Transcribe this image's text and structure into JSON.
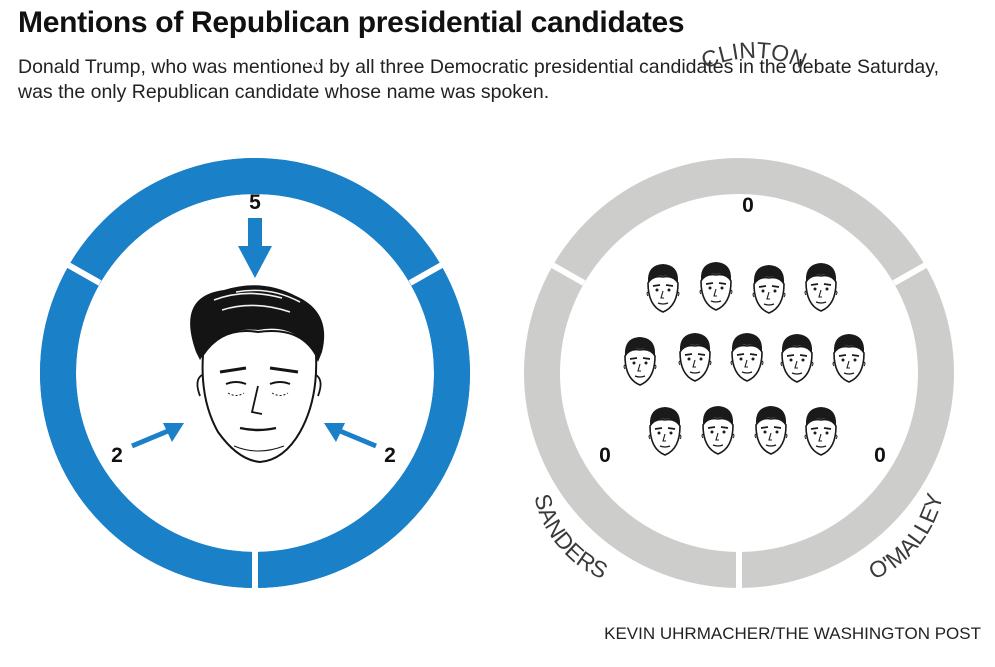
{
  "headline": "Mentions of Republican presidential candidates",
  "dek": "Donald Trump, who was mentioned by all three Democratic presidential candidates in the debate Saturday, was the only Republican candidate whose name was spoken.",
  "colors": {
    "active_ring": "#1a80c8",
    "inactive_ring": "#cdcdcb",
    "segment_text": "#ffffff",
    "inactive_text": "#3a3a3a",
    "ink": "#111111"
  },
  "panels": [
    {
      "subject": "Donald Trump",
      "mentions": [
        {
          "candidate": "CLINTON",
          "count": "5"
        },
        {
          "candidate": "SANDERS",
          "count": "2"
        },
        {
          "candidate": "O'MALLEY",
          "count": "2"
        }
      ]
    },
    {
      "subject": "other Republican candidates",
      "mentions": [
        {
          "candidate": "CLINTON",
          "count": "0"
        },
        {
          "candidate": "SANDERS",
          "count": "0"
        },
        {
          "candidate": "O'MALLEY",
          "count": "0"
        }
      ]
    }
  ],
  "credit": "KEVIN UHRMACHER/THE WASHINGTON POST"
}
